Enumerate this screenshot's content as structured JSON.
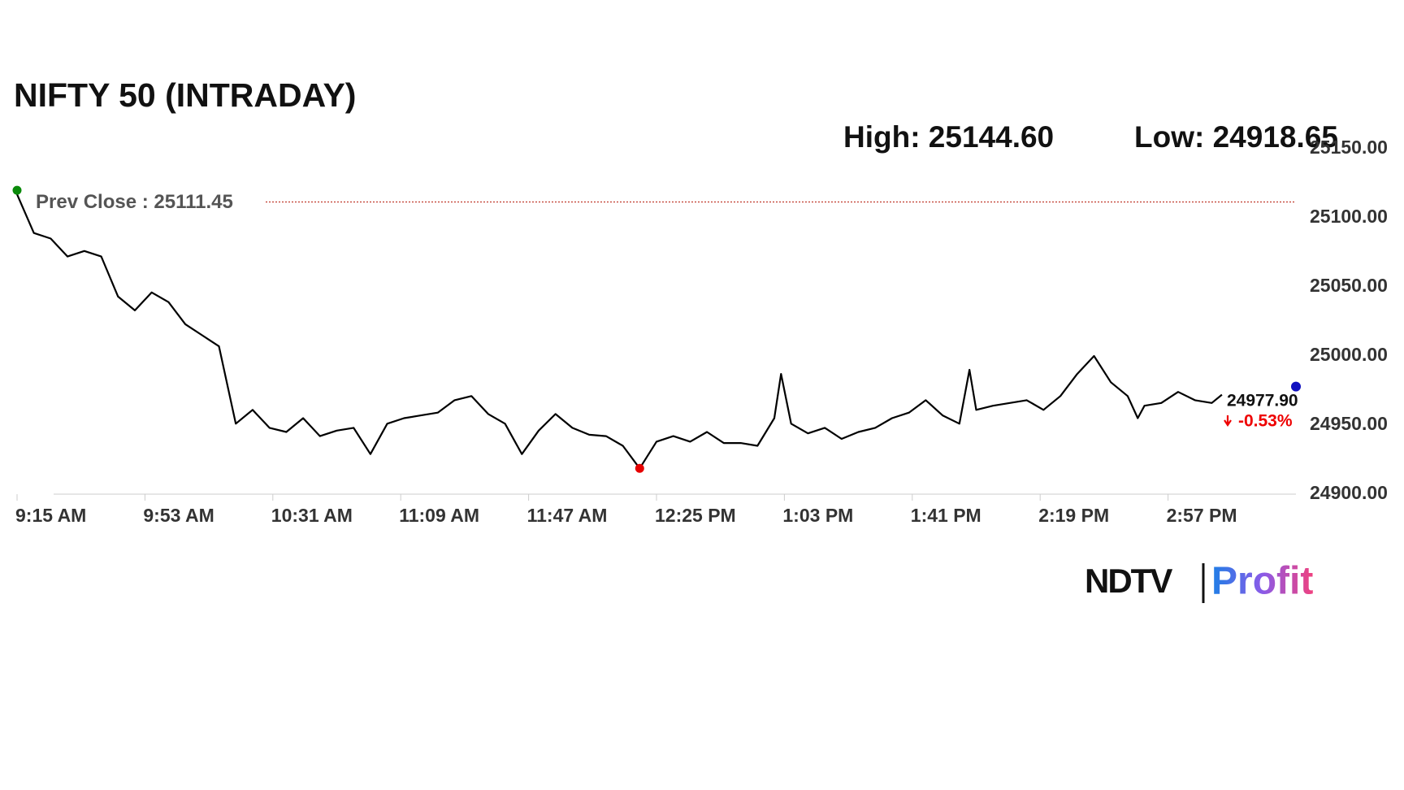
{
  "chart_data": {
    "type": "line",
    "title": "NIFTY 50 (INTRADAY)",
    "high_text": "High: 25144.60",
    "low_text": "Low: 24918.65",
    "prev_close": {
      "value": 25111.45,
      "label": "Prev Close : 25111.45"
    },
    "last_price": {
      "value": 24977.9,
      "label": "24977.90"
    },
    "change": {
      "value": -0.53,
      "label": "-0.53%"
    },
    "color": "#000000",
    "x": [
      "9:15 AM",
      "9:20 AM",
      "9:25 AM",
      "9:30 AM",
      "9:35 AM",
      "9:40 AM",
      "9:45 AM",
      "9:50 AM",
      "9:55 AM",
      "10:00 AM",
      "10:05 AM",
      "10:10 AM",
      "10:15 AM",
      "10:20 AM",
      "10:25 AM",
      "10:30 AM",
      "10:35 AM",
      "10:40 AM",
      "10:45 AM",
      "10:50 AM",
      "10:55 AM",
      "11:00 AM",
      "11:05 AM",
      "11:10 AM",
      "11:15 AM",
      "11:20 AM",
      "11:25 AM",
      "11:30 AM",
      "11:35 AM",
      "11:40 AM",
      "11:45 AM",
      "11:50 AM",
      "11:55 AM",
      "12:00 PM",
      "12:05 PM",
      "12:10 PM",
      "12:15 PM",
      "12:20 PM",
      "12:25 PM",
      "12:30 PM",
      "12:35 PM",
      "12:40 PM",
      "12:45 PM",
      "12:50 PM",
      "12:55 PM",
      "1:00 PM",
      "1:02 PM",
      "1:05 PM",
      "1:10 PM",
      "1:15 PM",
      "1:20 PM",
      "1:25 PM",
      "1:30 PM",
      "1:35 PM",
      "1:40 PM",
      "1:45 PM",
      "1:50 PM",
      "1:55 PM",
      "1:58 PM",
      "2:00 PM",
      "2:05 PM",
      "2:10 PM",
      "2:15 PM",
      "2:20 PM",
      "2:25 PM",
      "2:30 PM",
      "2:35 PM",
      "2:40 PM",
      "2:45 PM",
      "2:48 PM",
      "2:50 PM",
      "2:55 PM",
      "3:00 PM",
      "3:05 PM",
      "3:10 PM",
      "3:13 PM"
    ],
    "values": [
      25117,
      25089,
      25085,
      25072,
      25076,
      25072,
      25043,
      25033,
      25046,
      25039,
      25023,
      25015,
      25007,
      24951,
      24961,
      24948,
      24945,
      24955,
      24942,
      24946,
      24948,
      24929,
      24951,
      24955,
      24957,
      24959,
      24968,
      24971,
      24958,
      24951,
      24929,
      24946,
      24958,
      24948,
      24943,
      24942,
      24935,
      24918.65,
      24938,
      24942,
      24938,
      24945,
      24937,
      24937,
      24935,
      24955,
      24987,
      24951,
      24944,
      24948,
      24940,
      24945,
      24948,
      24955,
      24959,
      24968,
      24957,
      24951,
      24990,
      24961,
      24964,
      24966,
      24968,
      24961,
      24971,
      24987,
      25000,
      24981,
      24971,
      24955,
      24964,
      24966,
      24974,
      24968,
      24966,
      24972
    ],
    "xlim": [
      "9:15 AM",
      "3:35 PM"
    ],
    "xticks": [
      "9:15 AM",
      "9:53 AM",
      "10:31 AM",
      "11:09 AM",
      "11:47 AM",
      "12:25 PM",
      "1:03 PM",
      "1:41 PM",
      "2:19 PM",
      "2:57 PM"
    ],
    "ylim": [
      24900,
      25150
    ],
    "yticks": [
      {
        "value": 24900,
        "label": "24900.00"
      },
      {
        "value": 24950,
        "label": "24950.00"
      },
      {
        "value": 25000,
        "label": "25000.00"
      },
      {
        "value": 25050,
        "label": "25050.00"
      },
      {
        "value": 25100,
        "label": "25100.00"
      },
      {
        "value": 25150,
        "label": "25150.00"
      }
    ]
  },
  "logo": {
    "left": "NDTV",
    "right": "Profit"
  }
}
